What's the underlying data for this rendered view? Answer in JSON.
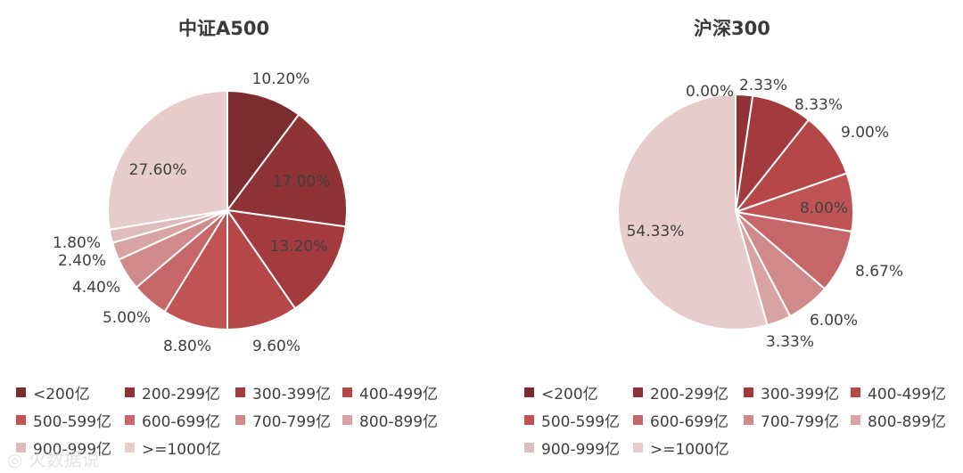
{
  "watermark": "◎ 火数据说",
  "chart_data": [
    {
      "type": "pie",
      "title": "中证A500",
      "categories": [
        "<200亿",
        "200-299亿",
        "300-399亿",
        "400-499亿",
        "500-599亿",
        "600-699亿",
        "700-799亿",
        "800-899亿",
        "900-999亿",
        ">=1000亿"
      ],
      "values": [
        10.2,
        17.0,
        13.2,
        9.6,
        8.8,
        5.0,
        4.4,
        2.4,
        1.8,
        27.6
      ],
      "labels": [
        "10.20%",
        "17.00%",
        "13.20%",
        "9.60%",
        "8.80%",
        "5.00%",
        "4.40%",
        "2.40%",
        "1.80%",
        "27.60%"
      ],
      "legend_placement": "bottom"
    },
    {
      "type": "pie",
      "title": "沪深300",
      "categories": [
        "<200亿",
        "200-299亿",
        "300-399亿",
        "400-499亿",
        "500-599亿",
        "600-699亿",
        "700-799亿",
        "800-899亿",
        "900-999亿",
        ">=1000亿"
      ],
      "values": [
        0.0,
        2.33,
        8.33,
        9.0,
        8.0,
        8.67,
        6.0,
        3.33,
        0.0,
        54.33
      ],
      "labels": [
        "0.00%",
        "2.33%",
        "8.33%",
        "9.00%",
        "8.00%",
        "8.67%",
        "6.00%",
        "3.33%",
        "",
        "54.33%"
      ],
      "legend_placement": "bottom"
    }
  ],
  "legend": {
    "items": [
      "<200亿",
      "200-299亿",
      "300-399亿",
      "400-499亿",
      "500-599亿",
      "600-699亿",
      "700-799亿",
      "800-899亿",
      "900-999亿",
      ">=1000亿"
    ]
  },
  "colors": [
    "#7b2c2f",
    "#8f3337",
    "#a33a3d",
    "#b64749",
    "#c05455",
    "#c76668",
    "#d18a8b",
    "#d8a3a3",
    "#e0bdbd",
    "#e6cccb"
  ]
}
